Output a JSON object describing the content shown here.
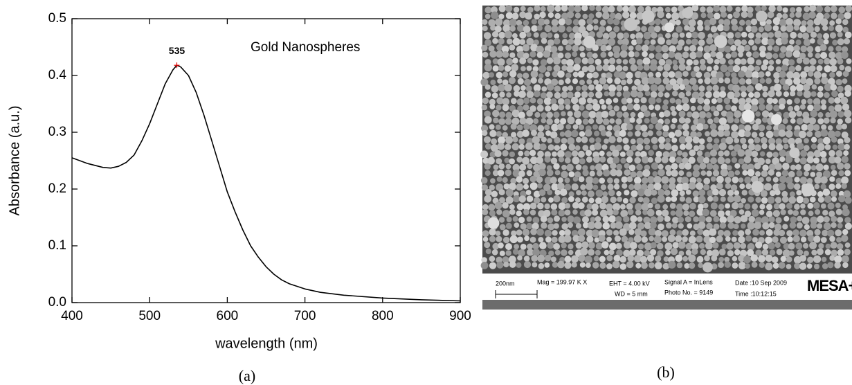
{
  "chart_data": {
    "type": "line",
    "x_label": "wavelength (nm)",
    "y_label": "Absorbance (a.u.)",
    "annotation": "Gold Nanospheres",
    "peak_annotation": {
      "value": 535,
      "label": "535"
    },
    "caption": "(a)",
    "color": "#000000",
    "x": [
      400,
      420,
      440,
      450,
      460,
      470,
      480,
      490,
      500,
      510,
      520,
      530,
      535,
      540,
      550,
      560,
      570,
      580,
      590,
      600,
      610,
      620,
      630,
      640,
      650,
      660,
      670,
      680,
      700,
      720,
      750,
      800,
      850,
      900
    ],
    "values": [
      0.255,
      0.245,
      0.238,
      0.237,
      0.24,
      0.247,
      0.26,
      0.285,
      0.315,
      0.35,
      0.385,
      0.41,
      0.418,
      0.415,
      0.4,
      0.37,
      0.33,
      0.285,
      0.24,
      0.195,
      0.16,
      0.128,
      0.1,
      0.08,
      0.063,
      0.05,
      0.04,
      0.033,
      0.024,
      0.018,
      0.013,
      0.008,
      0.005,
      0.003
    ],
    "xlim": [
      400,
      900
    ],
    "ylim": [
      0,
      0.5
    ],
    "xticks": [
      400,
      500,
      600,
      700,
      800,
      900
    ],
    "yticks": [
      {
        "value": 0,
        "label": "0.0"
      },
      0.1,
      0.2,
      0.3,
      0.4,
      0.5
    ]
  },
  "image_panel": {
    "caption": "(b)",
    "scale_bar": "200nm",
    "mag": "Mag = 199.97 K X",
    "eht": "EHT =  4.00 kV",
    "wd": "WD =   5 mm",
    "signal": "Signal A = InLens",
    "photo": "Photo No. = 9149",
    "date": "Date :10 Sep 2009",
    "time": "Time :10:12:15",
    "logo": "MESA+"
  }
}
